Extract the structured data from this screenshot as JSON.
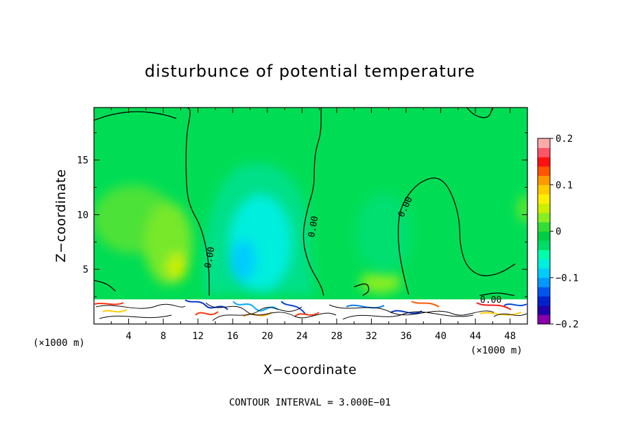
{
  "chart_data": {
    "type": "heatmap",
    "title": "disturbunce of potential temperature",
    "xlabel": "X−coordinate",
    "ylabel": "Z−coordinate",
    "x_unit_left": "(×1000 m)",
    "x_unit_right": "(×1000 m)",
    "xlim": [
      0,
      50
    ],
    "ylim": [
      0,
      19.8
    ],
    "x_ticks": [
      4,
      8,
      12,
      16,
      20,
      24,
      28,
      32,
      36,
      40,
      44,
      48
    ],
    "y_ticks": [
      5,
      10,
      15
    ],
    "colorbar": {
      "range": [
        -0.2,
        0.2
      ],
      "tick_values": [
        0.2,
        0.1,
        0,
        -0.1,
        -0.2
      ],
      "tick_labels": [
        "0.2",
        "0.1",
        "0",
        "−0.1",
        "−0.2"
      ],
      "colors": [
        "#8800aa",
        "#2200aa",
        "#0022cc",
        "#0055ee",
        "#0099ff",
        "#00ccff",
        "#00eedd",
        "#00ffaa",
        "#00dd66",
        "#00cc44",
        "#33dd33",
        "#88ee22",
        "#ccee00",
        "#ffee00",
        "#ffcc00",
        "#ff9900",
        "#ff5500",
        "#ff1111",
        "#ff5566",
        "#ffaaaa"
      ]
    },
    "contour_label": "0.00",
    "contour_interval_text": "CONTOUR INTERVAL = 3.000E−01",
    "contour_zero_lines": [
      [
        [
          -0.5,
          18.5
        ],
        [
          2,
          19.2
        ],
        [
          5,
          19.5
        ],
        [
          8,
          19.2
        ],
        [
          9.5,
          18.8
        ]
      ],
      [
        [
          10.8,
          19.8
        ],
        [
          11.2,
          19.5
        ],
        [
          10.7,
          17.5
        ],
        [
          10.6,
          15
        ],
        [
          10.7,
          12
        ],
        [
          11.2,
          10.5
        ],
        [
          12.3,
          9
        ],
        [
          13.1,
          6.5
        ],
        [
          13.3,
          4.5
        ],
        [
          13.3,
          2.6
        ]
      ],
      [
        [
          26.2,
          19.8
        ],
        [
          26.2,
          17.5
        ],
        [
          25.6,
          16
        ],
        [
          25.4,
          14.5
        ],
        [
          25.4,
          12.5
        ],
        [
          24.6,
          10.5
        ],
        [
          24,
          8
        ],
        [
          24.7,
          5.5
        ],
        [
          26.2,
          3.5
        ],
        [
          26.5,
          2.6
        ]
      ],
      [
        [
          36.3,
          2.7
        ],
        [
          35.7,
          4.5
        ],
        [
          35.1,
          7
        ],
        [
          35.1,
          9.8
        ],
        [
          35.9,
          11.5
        ],
        [
          37.4,
          12.9
        ],
        [
          39.3,
          13.5
        ],
        [
          40.6,
          12.9
        ],
        [
          41.6,
          11.3
        ],
        [
          42.2,
          9.3
        ],
        [
          42.2,
          7.3
        ],
        [
          42.9,
          5.3
        ],
        [
          44.6,
          4.3
        ],
        [
          46.8,
          4.6
        ],
        [
          48.6,
          5.5
        ]
      ],
      [
        [
          0,
          4
        ],
        [
          1.5,
          3.7
        ],
        [
          2.5,
          3
        ]
      ],
      [
        [
          30,
          3.4
        ],
        [
          31.5,
          3.8
        ],
        [
          31.8,
          3
        ],
        [
          31,
          2.6
        ]
      ],
      [
        [
          44.5,
          2.6
        ],
        [
          46.5,
          2.9
        ],
        [
          48.5,
          2.6
        ]
      ],
      [
        [
          43,
          19.8
        ],
        [
          44,
          19
        ],
        [
          45.5,
          18.8
        ],
        [
          46,
          19.8
        ]
      ]
    ],
    "lower_layer_top": 2.5
  }
}
